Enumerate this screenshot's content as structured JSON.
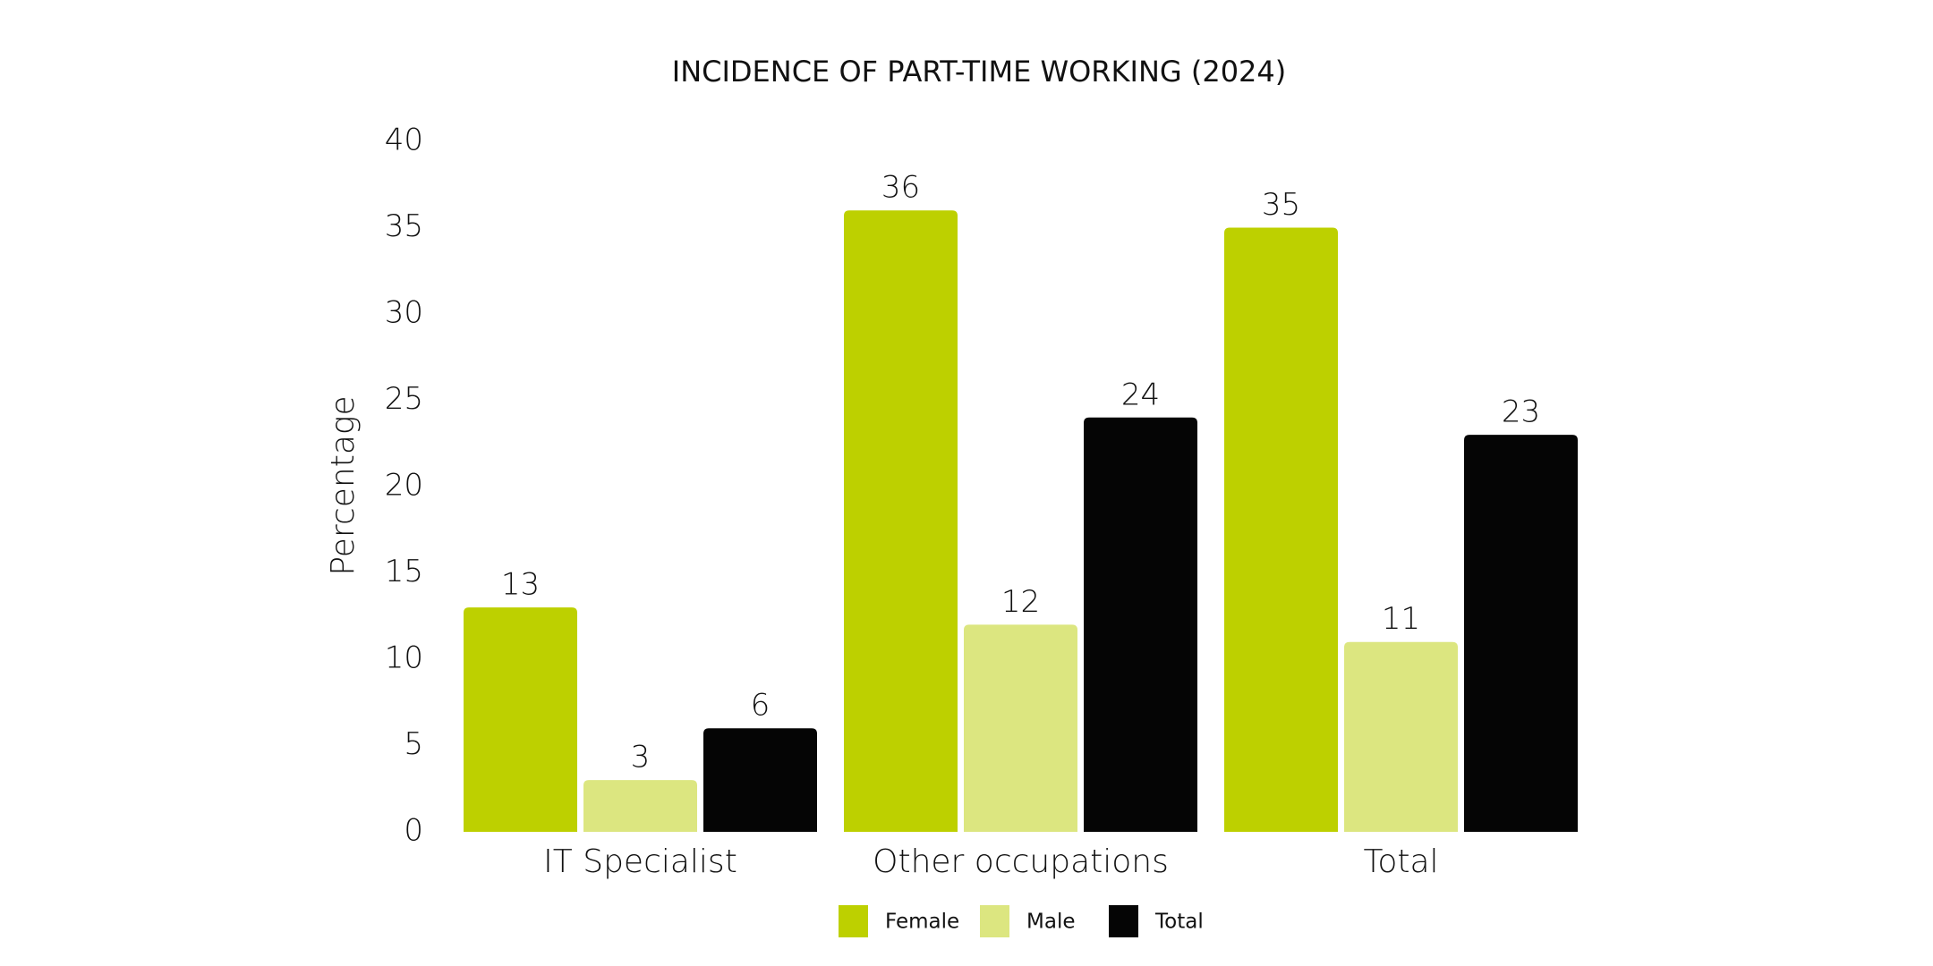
{
  "chart_data": {
    "type": "bar",
    "title": "INCIDENCE OF PART-TIME WORKING (2024)",
    "y_label": "Percentage",
    "categories": [
      "IT Specialist",
      "Other occupations",
      "Total"
    ],
    "series": [
      {
        "name": "Female",
        "color": "#bdd000",
        "values": [
          13,
          36,
          35
        ]
      },
      {
        "name": "Male",
        "color": "#dce680",
        "values": [
          3,
          12,
          11
        ]
      },
      {
        "name": "Total",
        "color": "#050505",
        "values": [
          6,
          24,
          23
        ]
      }
    ],
    "ylim": [
      0,
      40
    ],
    "yticks": [
      0,
      5,
      10,
      15,
      20,
      25,
      30,
      35,
      40
    ],
    "grid": false,
    "legend": "bottom"
  }
}
